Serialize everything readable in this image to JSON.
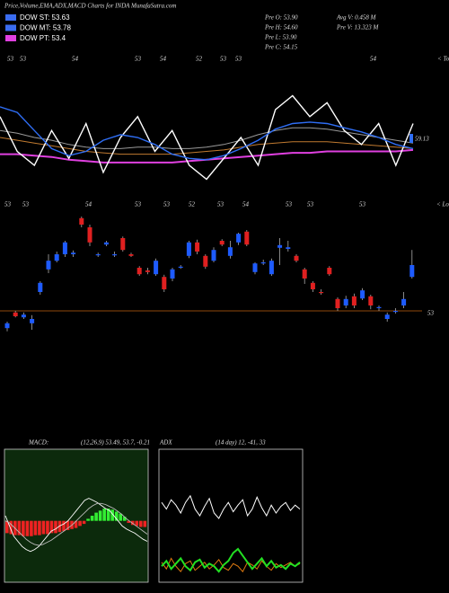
{
  "header": {
    "title": "Price,Volume,EMA,ADX,MACD Charts for INDA MunafaSutra.com"
  },
  "legend": [
    {
      "name": "DOW ST: 53.63",
      "color": "#3a6cf0"
    },
    {
      "name": "DOW MT: 53.78",
      "color": "#3a6cf0"
    },
    {
      "name": "DOW PT: 53.4",
      "color": "#e040e0"
    }
  ],
  "stats": [
    "Pre O: 53.90",
    "Pre H: 54.60",
    "Pre L: 53.90",
    "Pre C: 54.15",
    "Avg V: 0.458 M",
    "Pre V: 13.323 M"
  ],
  "top_panel": {
    "label": "< Tops",
    "last": "59.13",
    "tops": [
      53,
      53,
      54,
      53,
      54,
      52,
      53,
      53,
      54
    ],
    "ylim": [
      0,
      100
    ],
    "series": [
      {
        "color": "#9a9a9a",
        "values": [
          45,
          43,
          40,
          38,
          35,
          33,
          32,
          32,
          33,
          33,
          32,
          32,
          33,
          35,
          38,
          42,
          45,
          47,
          47,
          46,
          44,
          42,
          40,
          38,
          36
        ]
      },
      {
        "color": "#c07a30",
        "values": [
          40,
          38,
          36,
          34,
          32,
          30,
          29,
          28,
          28,
          28,
          28,
          29,
          30,
          31,
          33,
          35,
          36,
          37,
          37,
          37,
          36,
          35,
          34,
          33,
          32
        ]
      },
      {
        "color": "#e040e0",
        "values": [
          28,
          28,
          27,
          26,
          24,
          23,
          22,
          22,
          22,
          22,
          22,
          23,
          24,
          25,
          26,
          27,
          28,
          29,
          29,
          30,
          30,
          30,
          30,
          30,
          31
        ]
      },
      {
        "color": "#ffffff",
        "values": [
          55,
          30,
          20,
          45,
          25,
          50,
          15,
          40,
          55,
          30,
          45,
          20,
          10,
          25,
          40,
          20,
          60,
          70,
          55,
          65,
          45,
          35,
          50,
          20,
          50
        ]
      },
      {
        "color": "#2f6ef5",
        "values": [
          62,
          58,
          45,
          32,
          27,
          30,
          38,
          42,
          40,
          35,
          28,
          25,
          24,
          27,
          32,
          38,
          46,
          50,
          51,
          50,
          47,
          44,
          40,
          35,
          32
        ]
      }
    ]
  },
  "price_panel": {
    "label": "< Lows",
    "lows": [
      53,
      53,
      54,
      53,
      53,
      52,
      53,
      54,
      53,
      53,
      53
    ],
    "level": 53,
    "ylim": [
      52.6,
      55.0
    ],
    "up_color": "#1e5bff",
    "down_color": "#e02020",
    "candles": [
      [
        52.68,
        52.8,
        52.62,
        52.77
      ],
      [
        52.97,
        53.0,
        52.88,
        52.9
      ],
      [
        52.88,
        52.97,
        52.85,
        52.93
      ],
      [
        52.77,
        52.92,
        52.65,
        52.85
      ],
      [
        53.35,
        53.55,
        53.3,
        53.52
      ],
      [
        53.77,
        54.05,
        53.7,
        53.93
      ],
      [
        53.93,
        54.1,
        53.9,
        54.05
      ],
      [
        54.05,
        54.3,
        54.0,
        54.27
      ],
      [
        54.05,
        54.12,
        54.0,
        54.08
      ],
      [
        54.72,
        54.75,
        54.55,
        54.6
      ],
      [
        54.55,
        54.6,
        54.2,
        54.27
      ],
      [
        54.03,
        54.08,
        54.0,
        54.05
      ],
      [
        54.23,
        54.3,
        54.2,
        54.27
      ],
      [
        54.03,
        54.1,
        54.0,
        54.05
      ],
      [
        54.35,
        54.38,
        54.1,
        54.13
      ],
      [
        54.05,
        54.08,
        54.0,
        54.02
      ],
      [
        53.8,
        53.83,
        53.65,
        53.68
      ],
      [
        53.75,
        53.8,
        53.68,
        53.72
      ],
      [
        53.68,
        53.97,
        53.65,
        53.93
      ],
      [
        53.63,
        53.67,
        53.35,
        53.4
      ],
      [
        53.6,
        53.8,
        53.55,
        53.77
      ],
      [
        53.8,
        53.85,
        53.78,
        53.82
      ],
      [
        54.02,
        54.3,
        53.98,
        54.27
      ],
      [
        54.27,
        54.32,
        54.05,
        54.1
      ],
      [
        54.02,
        54.05,
        53.78,
        53.82
      ],
      [
        53.93,
        54.18,
        53.9,
        54.13
      ],
      [
        54.3,
        54.33,
        54.2,
        54.23
      ],
      [
        54.02,
        54.3,
        53.97,
        54.18
      ],
      [
        54.27,
        54.45,
        54.22,
        54.43
      ],
      [
        54.47,
        54.5,
        54.2,
        54.23
      ],
      [
        53.72,
        53.9,
        53.68,
        53.88
      ],
      [
        53.88,
        53.95,
        53.85,
        53.9
      ],
      [
        53.68,
        53.97,
        53.65,
        53.93
      ],
      [
        54.17,
        54.35,
        53.85,
        54.22
      ],
      [
        54.15,
        54.3,
        54.1,
        54.18
      ],
      [
        54.02,
        54.05,
        53.9,
        53.93
      ],
      [
        53.77,
        53.8,
        53.5,
        53.6
      ],
      [
        53.52,
        53.55,
        53.35,
        53.4
      ],
      [
        53.35,
        53.4,
        53.3,
        53.33
      ],
      [
        53.8,
        53.83,
        53.65,
        53.68
      ],
      [
        53.22,
        53.25,
        53.0,
        53.05
      ],
      [
        53.1,
        53.28,
        53.05,
        53.22
      ],
      [
        53.27,
        53.32,
        53.05,
        53.1
      ],
      [
        53.23,
        53.42,
        53.2,
        53.38
      ],
      [
        53.27,
        53.3,
        53.03,
        53.1
      ],
      [
        53.05,
        53.1,
        53.0,
        53.07
      ],
      [
        52.85,
        52.97,
        52.8,
        52.93
      ],
      [
        52.98,
        53.05,
        52.95,
        53.0
      ],
      [
        53.1,
        53.35,
        53.05,
        53.22
      ],
      [
        53.63,
        54.13,
        53.6,
        53.85
      ]
    ]
  },
  "macd": {
    "title": "MACD:",
    "params": "(12,26,9) 53.49, 53.7, -0.21",
    "ylim": [
      -0.6,
      0.7
    ],
    "histogram": [
      -0.12,
      -0.13,
      -0.14,
      -0.14,
      -0.15,
      -0.15,
      -0.15,
      -0.14,
      -0.14,
      -0.13,
      -0.13,
      -0.12,
      -0.12,
      -0.11,
      -0.1,
      -0.09,
      -0.08,
      -0.07,
      -0.05,
      -0.03,
      0.02,
      0.05,
      0.08,
      0.1,
      0.12,
      0.12,
      0.11,
      0.09,
      0.07,
      0.04,
      -0.02,
      -0.04,
      -0.05,
      -0.06,
      -0.06
    ],
    "series": [
      {
        "color": "#ffffff",
        "values": [
          0.05,
          -0.05,
          -0.15,
          -0.2,
          -0.25,
          -0.28,
          -0.3,
          -0.28,
          -0.25,
          -0.2,
          -0.15,
          -0.1,
          -0.08,
          -0.05,
          -0.03,
          0,
          0.05,
          0.1,
          0.15,
          0.2,
          0.22,
          0.2,
          0.18,
          0.15,
          0.12,
          0.1,
          0.05,
          0,
          -0.05,
          -0.08,
          -0.1,
          -0.12,
          -0.15,
          -0.18,
          -0.2
        ]
      },
      {
        "color": "#bbbbbb",
        "values": [
          0,
          -0.02,
          -0.06,
          -0.1,
          -0.14,
          -0.18,
          -0.21,
          -0.23,
          -0.24,
          -0.23,
          -0.21,
          -0.19,
          -0.16,
          -0.13,
          -0.1,
          -0.07,
          -0.04,
          0,
          0.04,
          0.08,
          0.12,
          0.15,
          0.17,
          0.17,
          0.16,
          0.14,
          0.12,
          0.09,
          0.06,
          0.02,
          -0.01,
          -0.04,
          -0.07,
          -0.1,
          -0.13
        ]
      }
    ]
  },
  "adx": {
    "title": "ADX",
    "params": "(14 day) 12, -41, 33",
    "ylim": [
      0,
      100
    ],
    "series": [
      {
        "color": "#ffffff",
        "values": [
          60,
          55,
          62,
          58,
          52,
          60,
          65,
          55,
          50,
          57,
          63,
          52,
          48,
          55,
          60,
          53,
          58,
          62,
          50,
          55,
          64,
          56,
          50,
          58,
          52,
          57,
          60,
          54,
          58,
          55
        ]
      },
      {
        "color": "#e07a10",
        "values": [
          15,
          10,
          18,
          12,
          8,
          14,
          16,
          9,
          12,
          15,
          10,
          13,
          17,
          11,
          9,
          14,
          12,
          8,
          15,
          13,
          10,
          16,
          12,
          9,
          14,
          11,
          13,
          15,
          12,
          14
        ]
      },
      {
        "color": "#22e022",
        "values": [
          12,
          16,
          10,
          14,
          18,
          12,
          9,
          15,
          17,
          11,
          14,
          12,
          8,
          13,
          16,
          22,
          25,
          20,
          15,
          10,
          14,
          18,
          12,
          16,
          11,
          13,
          10,
          14,
          12,
          15
        ]
      }
    ]
  }
}
